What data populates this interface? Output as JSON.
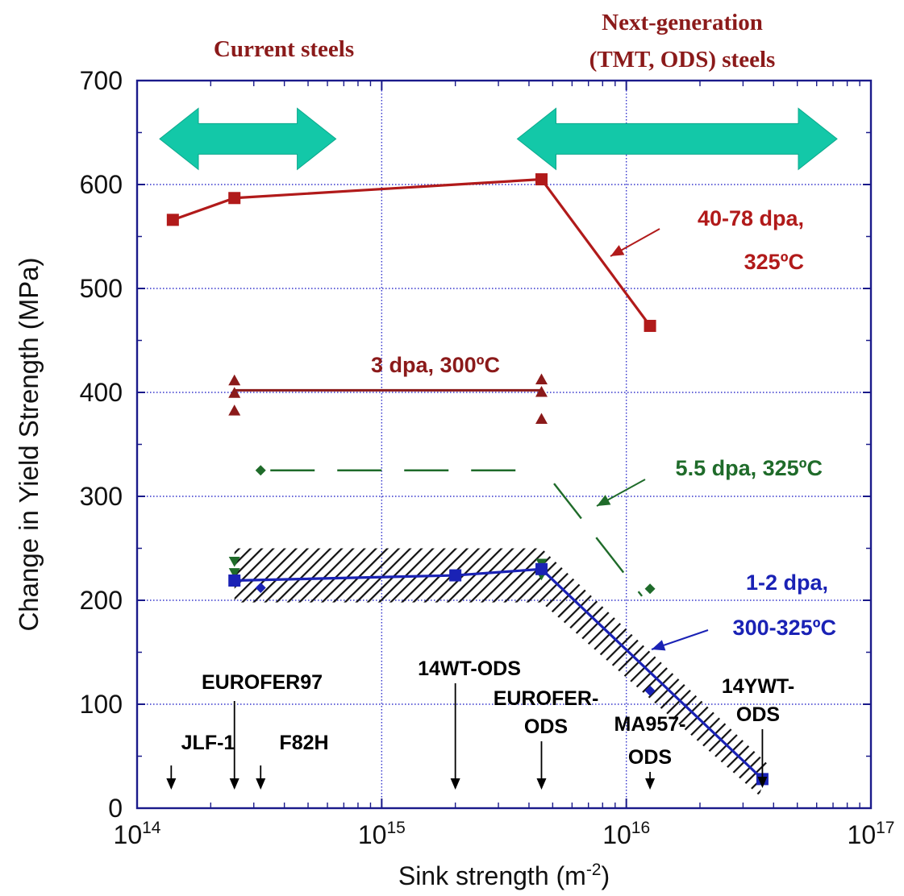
{
  "chart_data": {
    "type": "line",
    "xlabel": "Sink strength (m",
    "xlabel_sup": "-2",
    "xlabel_end": ")",
    "ylabel": "Change in Yield Strength (MPa)",
    "x_scale": "log",
    "xlim": [
      100000000000000.0,
      1e+17
    ],
    "ylim": [
      0,
      700
    ],
    "grid": true,
    "x_ticks": [
      {
        "value": 100000000000000.0,
        "base": "10",
        "exp": "14"
      },
      {
        "value": 1000000000000000.0,
        "base": "10",
        "exp": "15"
      },
      {
        "value": 1e+16,
        "base": "10",
        "exp": "16"
      },
      {
        "value": 1e+17,
        "base": "10",
        "exp": "17"
      }
    ],
    "y_ticks": [
      {
        "value": 0,
        "label": "0"
      },
      {
        "value": 100,
        "label": "100"
      },
      {
        "value": 200,
        "label": "200"
      },
      {
        "value": 300,
        "label": "300"
      },
      {
        "value": 400,
        "label": "400"
      },
      {
        "value": 500,
        "label": "500"
      },
      {
        "value": 600,
        "label": "600"
      },
      {
        "value": 700,
        "label": "700"
      }
    ],
    "header_labels": [
      {
        "id": "current",
        "lines": [
          "Current steels"
        ],
        "color": "#8b1a1a"
      },
      {
        "id": "nextgen",
        "lines": [
          "Next-generation",
          "(TMT, ODS) steels"
        ],
        "color": "#8b1a1a"
      }
    ],
    "range_arrows": [
      {
        "id": "current",
        "x_from": 100000000000000.0,
        "x_to": 650000000000000.0,
        "y": 640,
        "color": "#13c8a8"
      },
      {
        "id": "nextgen",
        "x_from": 4500000000000000.0,
        "x_to": 9e+16,
        "y": 640,
        "color": "#13c8a8"
      }
    ],
    "series": [
      {
        "label_lines": [
          "40-78 dpa,",
          "325ºC"
        ],
        "color": "#b11a1a",
        "marker": "square",
        "line_style": "solid",
        "points": [
          {
            "x": 140000000000000.0,
            "y": 566
          },
          {
            "x": 250000000000000.0,
            "y": 587
          },
          {
            "x": 4500000000000000.0,
            "y": 605
          },
          {
            "x": 1.25e+16,
            "y": 464
          }
        ]
      },
      {
        "label_lines": [
          "3 dpa, 300ºC"
        ],
        "color": "#8b1a1a",
        "marker": "triangle",
        "line_style": "solid",
        "points": [
          {
            "x": 250000000000000.0,
            "y": 402
          },
          {
            "x": 4500000000000000.0,
            "y": 402
          }
        ],
        "scatter": [
          {
            "x": 250000000000000.0,
            "y": 412
          },
          {
            "x": 250000000000000.0,
            "y": 400
          },
          {
            "x": 250000000000000.0,
            "y": 383
          },
          {
            "x": 4500000000000000.0,
            "y": 413
          },
          {
            "x": 4500000000000000.0,
            "y": 401
          },
          {
            "x": 4500000000000000.0,
            "y": 375
          }
        ]
      },
      {
        "label_lines": [
          "5.5 dpa, 325ºC"
        ],
        "color": "#1f6b2a",
        "marker": "diamond",
        "line_style": "dashed",
        "points": [
          {
            "x": 320000000000000.0,
            "y": 325
          },
          {
            "x": 4500000000000000.0,
            "y": 325
          },
          {
            "x": 1.25e+16,
            "y": 211
          }
        ],
        "scatter": [
          {
            "x": 320000000000000.0,
            "y": 325
          },
          {
            "x": 1.25e+16,
            "y": 211
          }
        ],
        "scatter_triangles": [
          {
            "x": 250000000000000.0,
            "y": 237
          },
          {
            "x": 250000000000000.0,
            "y": 226
          },
          {
            "x": 4500000000000000.0,
            "y": 235
          },
          {
            "x": 4500000000000000.0,
            "y": 224
          }
        ]
      },
      {
        "label_lines": [
          "1-2 dpa,",
          "300-325ºC"
        ],
        "color": "#1a22b5",
        "marker": "square",
        "line_style": "solid",
        "points": [
          {
            "x": 250000000000000.0,
            "y": 219
          },
          {
            "x": 2000000000000000.0,
            "y": 224
          },
          {
            "x": 4500000000000000.0,
            "y": 230
          },
          {
            "x": 3.6e+16,
            "y": 28
          }
        ],
        "scatter_diamonds": [
          {
            "x": 320000000000000.0,
            "y": 212
          },
          {
            "x": 1.25e+16,
            "y": 113
          }
        ]
      }
    ],
    "material_labels": [
      {
        "lines": [
          "JLF-1"
        ],
        "x": 140000000000000.0
      },
      {
        "lines": [
          "EUROFER97"
        ],
        "x": 250000000000000.0
      },
      {
        "lines": [
          "F82H"
        ],
        "x": 320000000000000.0
      },
      {
        "lines": [
          "14WT-ODS"
        ],
        "x": 2000000000000000.0
      },
      {
        "lines": [
          "EUROFER-",
          "ODS"
        ],
        "x": 4500000000000000.0
      },
      {
        "lines": [
          "MA957-",
          "ODS"
        ],
        "x": 1.25e+16
      },
      {
        "lines": [
          "14YWT-",
          "ODS"
        ],
        "x": 3.6e+16
      }
    ]
  }
}
